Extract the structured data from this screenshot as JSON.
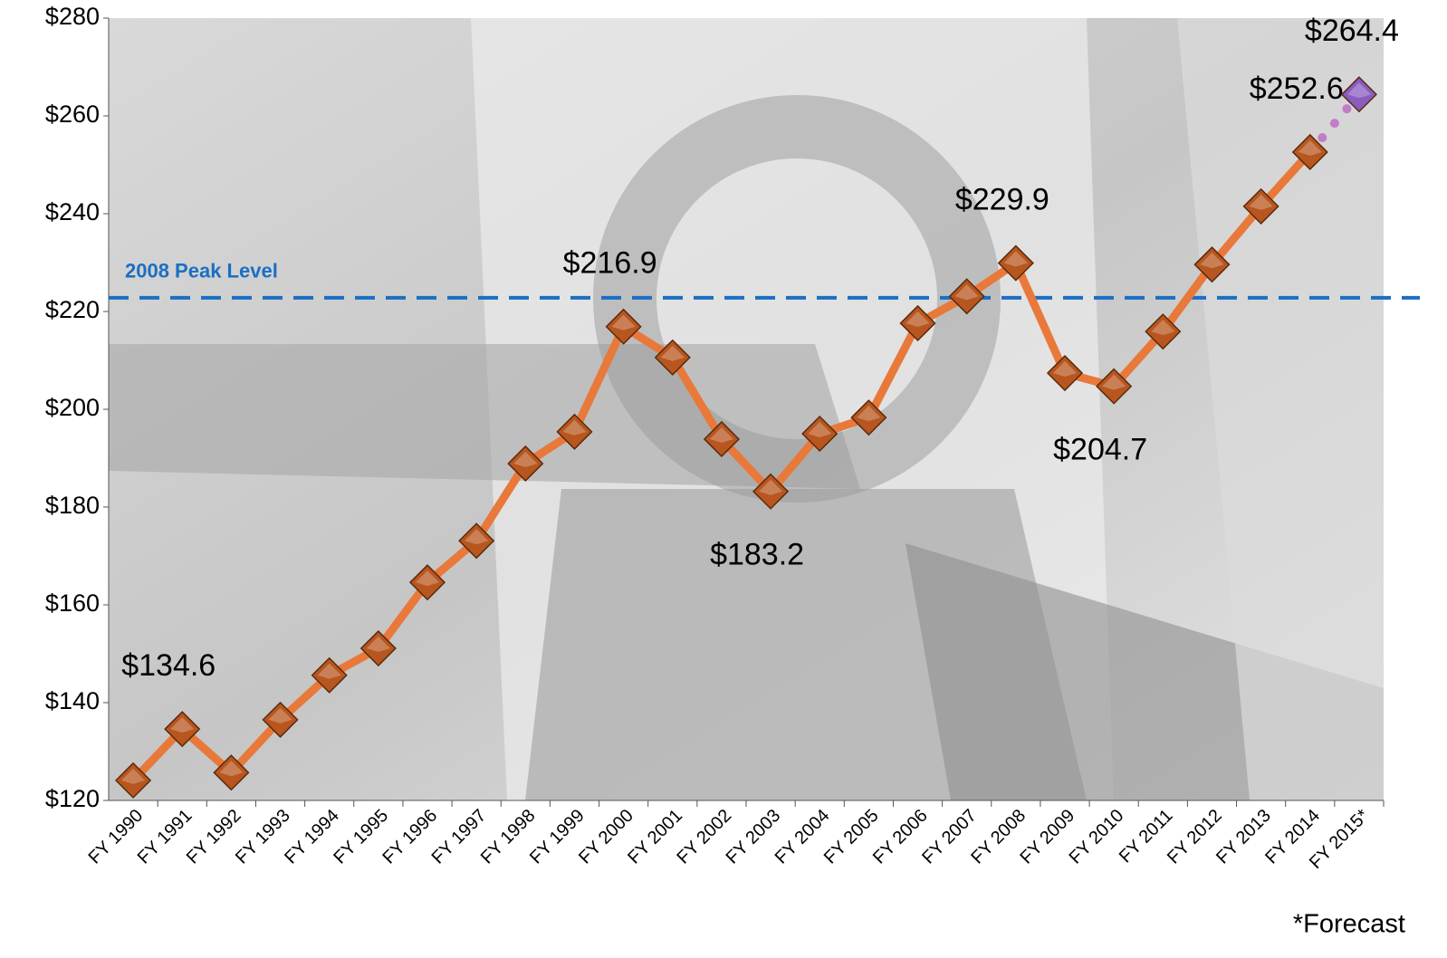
{
  "chart_data": {
    "type": "line",
    "categories": [
      "FY 1990",
      "FY 1991",
      "FY 1992",
      "FY 1993",
      "FY 1994",
      "FY 1995",
      "FY 1996",
      "FY 1997",
      "FY 1998",
      "FY 1999",
      "FY 2000",
      "FY 2001",
      "FY 2002",
      "FY 2003",
      "FY 2004",
      "FY 2005",
      "FY 2006",
      "FY 2007",
      "FY 2008",
      "FY 2009",
      "FY 2010",
      "FY 2011",
      "FY 2012",
      "FY 2013",
      "FY 2014",
      "FY 2015*"
    ],
    "series": [
      {
        "color": "#e8793a",
        "marker_color": "#b8561f",
        "values": [
          124.1,
          134.6,
          125.7,
          136.5,
          145.6,
          151.1,
          164.6,
          173.1,
          188.9,
          195.4,
          216.9,
          210.6,
          193.9,
          183.2,
          195.0,
          198.3,
          217.6,
          223.1,
          229.9,
          207.4,
          204.7,
          215.9,
          229.6,
          241.5,
          252.6,
          null
        ],
        "value_labels": [
          null,
          "$134.6",
          null,
          null,
          null,
          null,
          null,
          null,
          null,
          null,
          "$216.9",
          null,
          null,
          "$183.2",
          null,
          null,
          null,
          null,
          "$229.9",
          null,
          "$204.7",
          null,
          null,
          null,
          "$252.6",
          null
        ]
      },
      {
        "color": "#c27cc8",
        "marker_color": "#8a5cc0",
        "dotted": true,
        "values": [
          null,
          null,
          null,
          null,
          null,
          null,
          null,
          null,
          null,
          null,
          null,
          null,
          null,
          null,
          null,
          null,
          null,
          null,
          null,
          null,
          null,
          null,
          null,
          null,
          null,
          264.4
        ],
        "value_labels": [
          null,
          null,
          null,
          null,
          null,
          null,
          null,
          null,
          null,
          null,
          null,
          null,
          null,
          null,
          null,
          null,
          null,
          null,
          null,
          null,
          null,
          null,
          null,
          null,
          null,
          "$264.4"
        ]
      }
    ],
    "ylim": [
      120,
      280
    ],
    "yticks": [
      {
        "value": 120,
        "label": "$120"
      },
      {
        "value": 140,
        "label": "$140"
      },
      {
        "value": 160,
        "label": "$160"
      },
      {
        "value": 180,
        "label": "$180"
      },
      {
        "value": 200,
        "label": "$200"
      },
      {
        "value": 220,
        "label": "$220"
      },
      {
        "value": 240,
        "label": "$240"
      },
      {
        "value": 260,
        "label": "$260"
      },
      {
        "value": 280,
        "label": "$280"
      }
    ],
    "reference_line": {
      "value": 222.8,
      "label": "2008 Peak Level",
      "color": "#1a6fc2"
    },
    "footnote": "*Forecast"
  }
}
